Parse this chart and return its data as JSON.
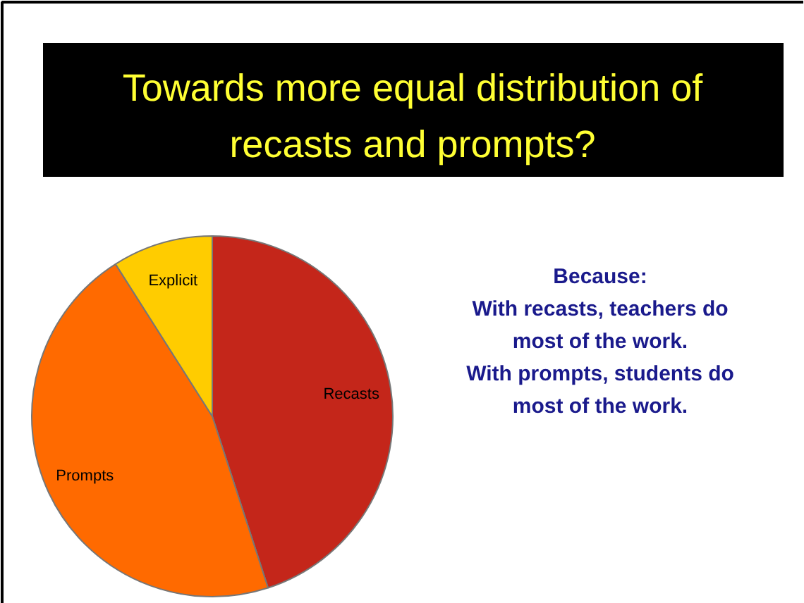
{
  "chart_data": {
    "type": "pie",
    "title": "Towards more equal distribution of recasts and prompts?",
    "categories": [
      "Recasts",
      "Prompts",
      "Explicit"
    ],
    "values": [
      45,
      46,
      9
    ],
    "colors": [
      "#c4261a",
      "#ff6a00",
      "#ffcc00"
    ],
    "annotations": [
      "Because:",
      "With recasts, teachers do most of the work.",
      "With prompts, students do most of the work."
    ]
  }
}
